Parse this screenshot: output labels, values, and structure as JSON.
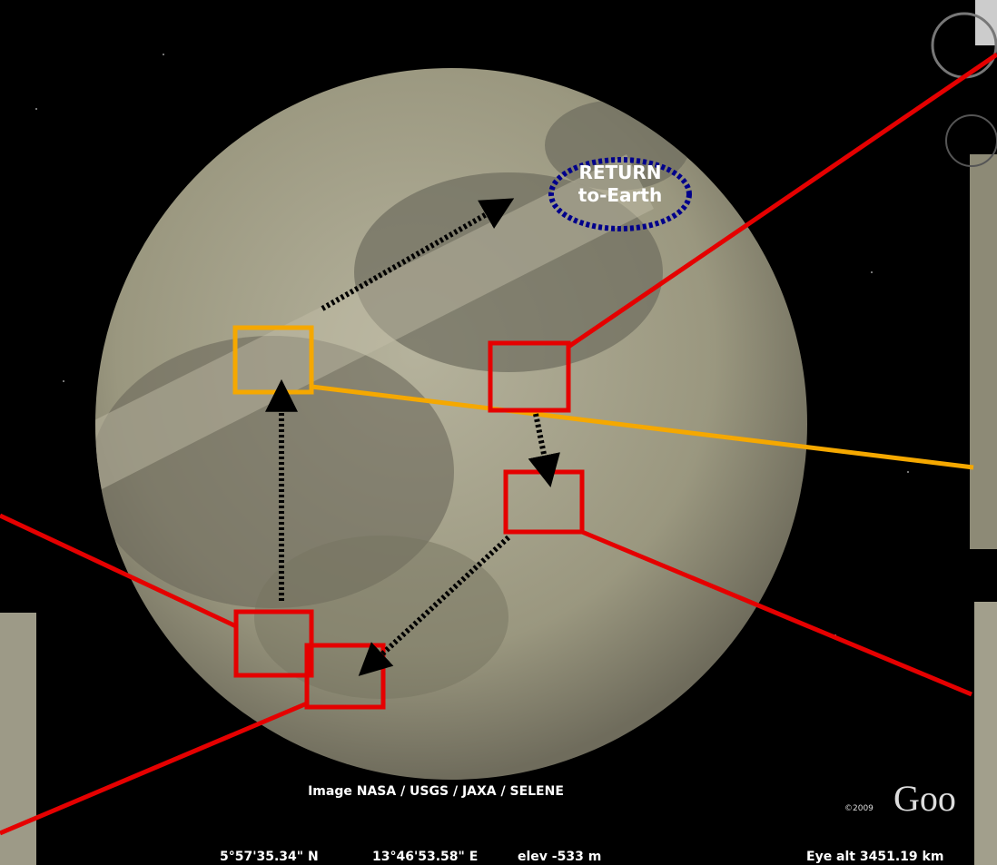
{
  "callout": {
    "line1": "RETURN",
    "line2": "to-Earth"
  },
  "attribution": "Image NASA / USGS / JAXA / SELENE",
  "status": {
    "lat": "5°57'35.34\" N",
    "lon": "13°46'53.58\" E",
    "elev": "elev -533 m",
    "eye_alt": "Eye alt  3451.19 km"
  },
  "logo": {
    "copyright": "©2009",
    "text": "Goo"
  }
}
